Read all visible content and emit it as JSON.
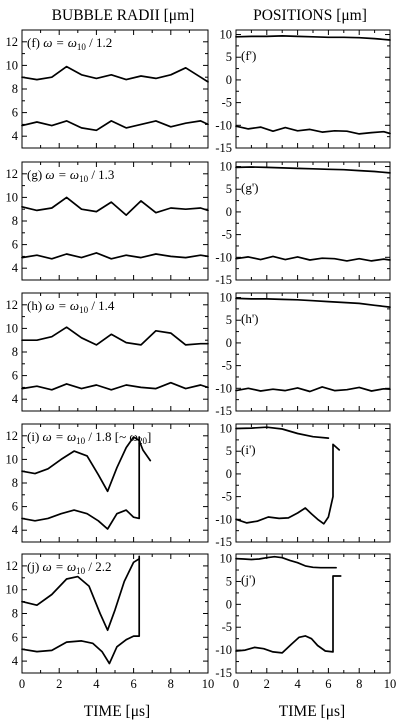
{
  "headers": {
    "left_title": "BUBBLE RADII [μm]",
    "right_title": "POSITIONS [μm]",
    "left_xlabel": "TIME [μs]",
    "right_xlabel": "TIME [μs]"
  },
  "chart_data": [
    {
      "type": "line",
      "panel": "f",
      "label": "(f)",
      "omega_text": "ω = ω",
      "sub": "10",
      "after": " / 1.2",
      "axis": "radii",
      "xlim": [
        0,
        10
      ],
      "ylim": [
        3,
        13
      ],
      "series": [
        {
          "x": [
            0,
            0.8,
            1.6,
            2.4,
            3.2,
            4.0,
            4.8,
            5.6,
            6.4,
            7.2,
            8.0,
            8.8,
            9.6,
            10
          ],
          "values": [
            9.0,
            8.8,
            9.0,
            9.9,
            9.2,
            8.9,
            9.2,
            8.8,
            9.1,
            8.9,
            9.2,
            9.8,
            9.0,
            8.6
          ]
        },
        {
          "x": [
            0,
            0.8,
            1.6,
            2.4,
            3.2,
            4.0,
            4.8,
            5.6,
            6.4,
            7.2,
            8.0,
            8.8,
            9.6,
            10
          ],
          "values": [
            4.9,
            5.2,
            4.9,
            5.3,
            4.7,
            4.5,
            5.3,
            4.7,
            5.0,
            5.3,
            4.8,
            5.1,
            5.3,
            5.0
          ]
        }
      ]
    },
    {
      "type": "line",
      "panel": "f'",
      "label": "(f')",
      "axis": "positions",
      "xlim": [
        0,
        10
      ],
      "ylim": [
        -15,
        11
      ],
      "series": [
        {
          "x": [
            0,
            1,
            2,
            3,
            4,
            5,
            6,
            7,
            8,
            9,
            10
          ],
          "values": [
            9.5,
            9.6,
            9.6,
            9.7,
            9.6,
            9.5,
            9.4,
            9.4,
            9.3,
            9.1,
            8.8
          ]
        },
        {
          "x": [
            0,
            0.8,
            1.6,
            2.4,
            3.2,
            4.0,
            4.8,
            5.6,
            6.4,
            7.2,
            8.0,
            8.8,
            9.6,
            10
          ],
          "values": [
            -10.2,
            -10.8,
            -10.4,
            -11.3,
            -10.5,
            -11.2,
            -10.9,
            -11.5,
            -11.2,
            -11.3,
            -11.9,
            -11.6,
            -11.4,
            -11.8
          ]
        }
      ]
    },
    {
      "type": "line",
      "panel": "g",
      "label": "(g)",
      "omega_text": "ω = ω",
      "sub": "10",
      "after": " / 1.3",
      "axis": "radii",
      "xlim": [
        0,
        10
      ],
      "ylim": [
        3,
        13
      ],
      "series": [
        {
          "x": [
            0,
            0.8,
            1.6,
            2.4,
            3.2,
            4.0,
            4.8,
            5.6,
            6.4,
            7.2,
            8.0,
            8.8,
            9.6,
            10
          ],
          "values": [
            9.2,
            8.9,
            9.1,
            10.0,
            9.0,
            8.8,
            9.6,
            8.5,
            9.7,
            8.7,
            9.1,
            9.0,
            9.1,
            8.9
          ]
        },
        {
          "x": [
            0,
            0.8,
            1.6,
            2.4,
            3.2,
            4.0,
            4.8,
            5.6,
            6.4,
            7.2,
            8.0,
            8.8,
            9.6,
            10
          ],
          "values": [
            4.9,
            5.1,
            4.8,
            5.2,
            4.9,
            5.3,
            4.8,
            5.1,
            4.9,
            5.2,
            5.0,
            4.9,
            5.1,
            5.0
          ]
        }
      ]
    },
    {
      "type": "line",
      "panel": "g'",
      "label": "(g')",
      "axis": "positions",
      "xlim": [
        0,
        10
      ],
      "ylim": [
        -15,
        11
      ],
      "series": [
        {
          "x": [
            0,
            1,
            2,
            3,
            4,
            5,
            6,
            7,
            8,
            9,
            10
          ],
          "values": [
            9.8,
            9.9,
            9.8,
            9.7,
            9.6,
            9.5,
            9.4,
            9.3,
            9.1,
            8.9,
            8.6
          ]
        },
        {
          "x": [
            0,
            0.8,
            1.6,
            2.4,
            3.2,
            4.0,
            4.8,
            5.6,
            6.4,
            7.2,
            8.0,
            8.8,
            9.6,
            10
          ],
          "values": [
            -10.3,
            -9.9,
            -10.5,
            -9.8,
            -10.5,
            -9.9,
            -10.6,
            -10.2,
            -10.3,
            -10.8,
            -10.3,
            -10.8,
            -10.4,
            -10.6
          ]
        }
      ]
    },
    {
      "type": "line",
      "panel": "h",
      "label": "(h)",
      "omega_text": "ω = ω",
      "sub": "10",
      "after": " / 1.4",
      "axis": "radii",
      "xlim": [
        0,
        10
      ],
      "ylim": [
        3,
        13
      ],
      "series": [
        {
          "x": [
            0,
            0.8,
            1.6,
            2.4,
            3.2,
            4.0,
            4.8,
            5.6,
            6.4,
            7.2,
            8.0,
            8.8,
            9.6,
            10
          ],
          "values": [
            9.0,
            9.0,
            9.3,
            10.1,
            9.2,
            8.6,
            9.5,
            8.8,
            8.6,
            9.8,
            9.6,
            8.6,
            8.7,
            8.7
          ]
        },
        {
          "x": [
            0,
            0.8,
            1.6,
            2.4,
            3.2,
            4.0,
            4.8,
            5.6,
            6.4,
            7.2,
            8.0,
            8.8,
            9.6,
            10
          ],
          "values": [
            4.9,
            5.1,
            4.8,
            5.3,
            4.9,
            5.2,
            4.8,
            5.2,
            5.0,
            4.9,
            5.4,
            4.9,
            5.2,
            5.0
          ]
        }
      ]
    },
    {
      "type": "line",
      "panel": "h'",
      "label": "(h')",
      "axis": "positions",
      "xlim": [
        0,
        10
      ],
      "ylim": [
        -15,
        11
      ],
      "series": [
        {
          "x": [
            0,
            1,
            2,
            3,
            4,
            5,
            6,
            7,
            8,
            9,
            10
          ],
          "values": [
            9.8,
            9.7,
            9.7,
            9.6,
            9.5,
            9.3,
            9.1,
            8.9,
            8.7,
            8.3,
            7.9
          ]
        },
        {
          "x": [
            0,
            0.8,
            1.6,
            2.4,
            3.2,
            4.0,
            4.8,
            5.6,
            6.4,
            7.2,
            8.0,
            8.8,
            9.6,
            10
          ],
          "values": [
            -10.5,
            -10.0,
            -10.6,
            -10.2,
            -10.5,
            -9.9,
            -10.7,
            -9.7,
            -10.5,
            -10.3,
            -9.8,
            -10.6,
            -10.1,
            -10.2
          ]
        }
      ]
    },
    {
      "type": "line",
      "panel": "i",
      "label": "(i)",
      "omega_text": "ω = ω",
      "sub": "10",
      "after": " / 1.8 [~ ω",
      "sub2": "20",
      "after2": "]",
      "axis": "radii",
      "xlim": [
        0,
        10
      ],
      "ylim": [
        3,
        13
      ],
      "series": [
        {
          "x": [
            0,
            0.7,
            1.4,
            2.1,
            2.8,
            3.5,
            4.1,
            4.6,
            5.1,
            5.6,
            6.0,
            6.3,
            6.5,
            6.9
          ],
          "values": [
            9.0,
            8.8,
            9.2,
            10.0,
            10.7,
            10.3,
            8.7,
            7.3,
            9.3,
            11.0,
            11.9,
            11.6,
            10.8,
            9.9
          ]
        },
        {
          "x": [
            0,
            0.7,
            1.4,
            2.1,
            2.8,
            3.5,
            4.1,
            4.6,
            5.1,
            5.6,
            6.0,
            6.3,
            6.3
          ],
          "values": [
            5.0,
            4.8,
            5.0,
            5.4,
            5.7,
            5.4,
            4.8,
            4.1,
            5.4,
            5.7,
            5.1,
            5.0,
            11.9
          ]
        }
      ]
    },
    {
      "type": "line",
      "panel": "i'",
      "label": "(i')",
      "axis": "positions",
      "xlim": [
        0,
        10
      ],
      "ylim": [
        -15,
        11
      ],
      "series": [
        {
          "x": [
            0,
            1,
            2,
            3,
            4,
            5,
            6
          ],
          "values": [
            10.0,
            10.1,
            10.3,
            9.9,
            8.9,
            8.2,
            7.9
          ]
        },
        {
          "x": [
            0,
            0.7,
            1.4,
            2.1,
            2.8,
            3.4,
            4.0,
            4.5,
            4.9,
            5.3,
            5.7,
            6.0,
            6.3,
            6.3,
            6.7
          ],
          "values": [
            -10.0,
            -10.8,
            -10.4,
            -9.5,
            -9.8,
            -9.7,
            -8.6,
            -7.5,
            -8.8,
            -10.0,
            -11.0,
            -9.5,
            -5.0,
            6.5,
            5.3
          ]
        }
      ]
    },
    {
      "type": "line",
      "panel": "j",
      "label": "(j)",
      "omega_text": "ω = ω",
      "sub": "10",
      "after": " / 2.2",
      "axis": "radii",
      "xlim": [
        0,
        10
      ],
      "ylim": [
        3,
        13
      ],
      "series": [
        {
          "x": [
            0,
            0.8,
            1.6,
            2.4,
            3.0,
            3.6,
            4.2,
            4.6,
            5.0,
            5.5,
            6.0,
            6.3
          ],
          "values": [
            9.0,
            8.7,
            9.6,
            10.9,
            11.1,
            10.3,
            8.0,
            6.6,
            8.3,
            10.7,
            12.3,
            12.6
          ]
        },
        {
          "x": [
            0,
            0.8,
            1.6,
            2.4,
            3.2,
            3.8,
            4.3,
            4.7,
            5.1,
            5.6,
            6.0,
            6.2,
            6.3,
            6.3
          ],
          "values": [
            5.0,
            4.8,
            4.9,
            5.6,
            5.7,
            5.5,
            4.8,
            3.8,
            5.2,
            5.8,
            6.1,
            6.1,
            6.1,
            12.8
          ]
        }
      ]
    },
    {
      "type": "line",
      "panel": "j'",
      "label": "(j')",
      "axis": "positions",
      "xlim": [
        0,
        10
      ],
      "ylim": [
        -15,
        11
      ],
      "series": [
        {
          "x": [
            0,
            0.5,
            1.0,
            1.5,
            2.0,
            2.5,
            3.0,
            3.5,
            4.0,
            4.5,
            5.0,
            5.5,
            6.0,
            6.5
          ],
          "values": [
            10.0,
            9.9,
            9.8,
            9.9,
            10.2,
            10.4,
            10.2,
            9.6,
            9.1,
            8.4,
            8.1,
            8.0,
            8.0,
            8.0
          ]
        },
        {
          "x": [
            0,
            0.6,
            1.2,
            1.8,
            2.4,
            3.0,
            3.6,
            4.1,
            4.5,
            4.9,
            5.3,
            5.8,
            6.3,
            6.3,
            6.8
          ],
          "values": [
            -10.2,
            -10.0,
            -9.4,
            -9.7,
            -10.4,
            -10.6,
            -8.7,
            -7.2,
            -6.9,
            -7.5,
            -9.0,
            -10.2,
            -10.4,
            6.2,
            6.2
          ]
        }
      ]
    }
  ]
}
